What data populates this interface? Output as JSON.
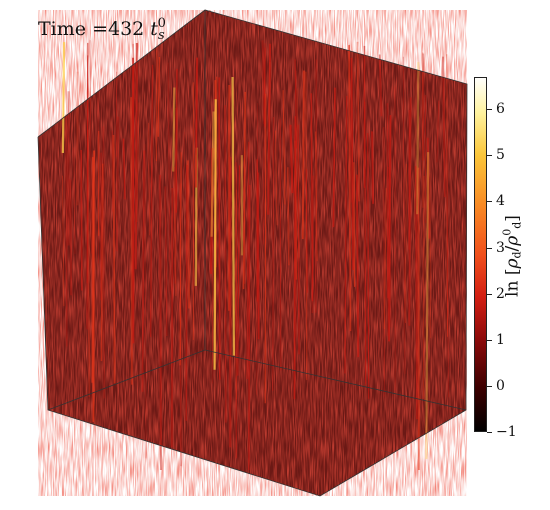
{
  "figure": {
    "time_prefix": "Time",
    "time_equals": "=",
    "time_value": "432",
    "time_var": "t",
    "time_sub": "s",
    "time_sup": "0",
    "colorbar": {
      "title_prefix": "ln",
      "title_open": "[",
      "title_num": "ρ",
      "title_num_sub": "d",
      "title_slash": "/",
      "title_den": "ρ",
      "title_den_sub": "d",
      "title_den_sup": "0",
      "title_close": "]",
      "min": -1,
      "max": 6.7,
      "ticks": [
        "6",
        "5",
        "4",
        "3",
        "2",
        "1",
        "0",
        "−1"
      ],
      "tick_values": [
        6,
        5,
        4,
        3,
        2,
        1,
        0,
        -1
      ],
      "colors": [
        "#000000",
        "#3a0000",
        "#8b0a0a",
        "#d21e12",
        "#f0501c",
        "#f88a24",
        "#fbc63a",
        "#fff3a0",
        "#ffffff"
      ]
    },
    "cube": {
      "face_fill": "#8a8a8a",
      "density_color": "#c81a12",
      "highlight_color": "#ffd24a"
    }
  }
}
